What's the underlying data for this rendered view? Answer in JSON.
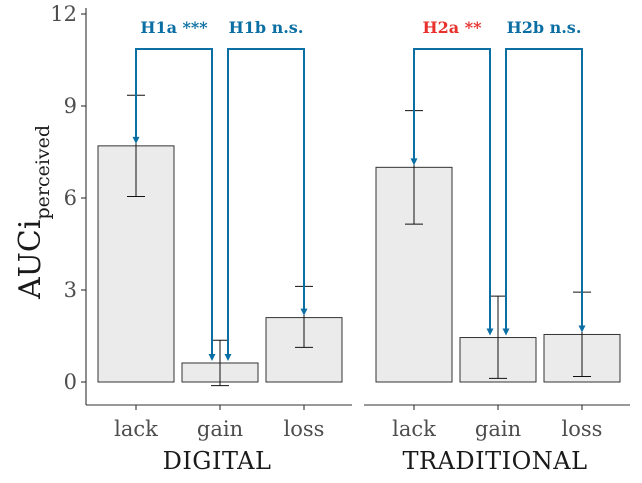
{
  "chart_data": {
    "type": "bar",
    "ylabel_main": "AUCi",
    "ylabel_sub": "perceived",
    "ylim": [
      -0.75,
      12
    ],
    "yticks": [
      "0",
      "3",
      "6",
      "9",
      "12"
    ],
    "ytick_values": [
      0,
      3,
      6,
      9,
      12
    ],
    "panels": [
      {
        "name": "DIGITAL",
        "categories": [
          "lack",
          "gain",
          "loss"
        ],
        "values": [
          7.7,
          0.62,
          2.1
        ],
        "error_low": [
          6.05,
          -0.12,
          1.13
        ],
        "error_high": [
          9.35,
          1.36,
          3.12
        ]
      },
      {
        "name": "TRADITIONAL",
        "categories": [
          "lack",
          "gain",
          "loss"
        ],
        "values": [
          7.0,
          1.45,
          1.55
        ],
        "error_low": [
          5.15,
          0.12,
          0.18
        ],
        "error_high": [
          8.85,
          2.8,
          2.93
        ]
      }
    ],
    "hypotheses": [
      {
        "label": "H1a ***",
        "panel": 0,
        "from": 0,
        "to": 1,
        "color": "#0b6fa4"
      },
      {
        "label": "H1b n.s.",
        "panel": 0,
        "from": 1,
        "to": 2,
        "color": "#0b6fa4"
      },
      {
        "label": "H2a **",
        "panel": 1,
        "from": 0,
        "to": 1,
        "color": "#e8302c"
      },
      {
        "label": "H2b n.s.",
        "panel": 1,
        "from": 1,
        "to": 2,
        "color": "#0b6fa4"
      }
    ],
    "bar_fill": "#ebebeb",
    "bar_stroke": "#333333",
    "bracket_color": "#0b6fa4"
  }
}
